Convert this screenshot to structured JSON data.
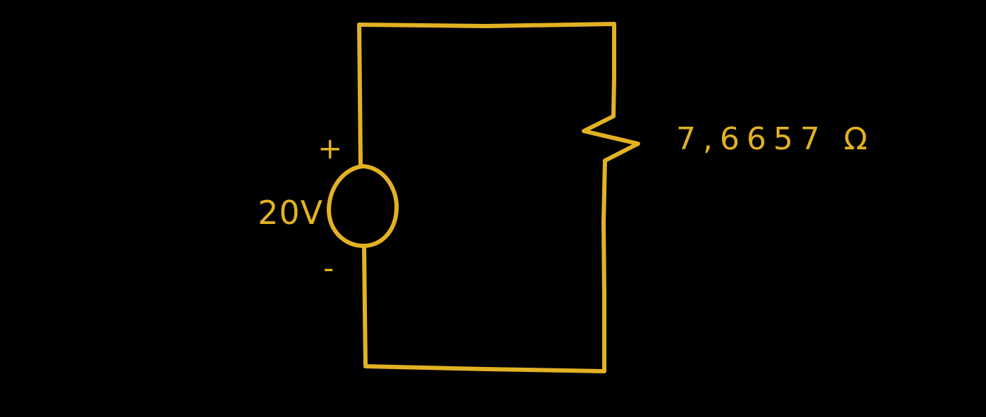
{
  "colors": {
    "background": "#000000",
    "ink": "#E2B224"
  },
  "source": {
    "voltage": "20V",
    "positive_terminal": "+",
    "negative_terminal": "-"
  },
  "load": {
    "resistance": "7,6657 Ω"
  }
}
